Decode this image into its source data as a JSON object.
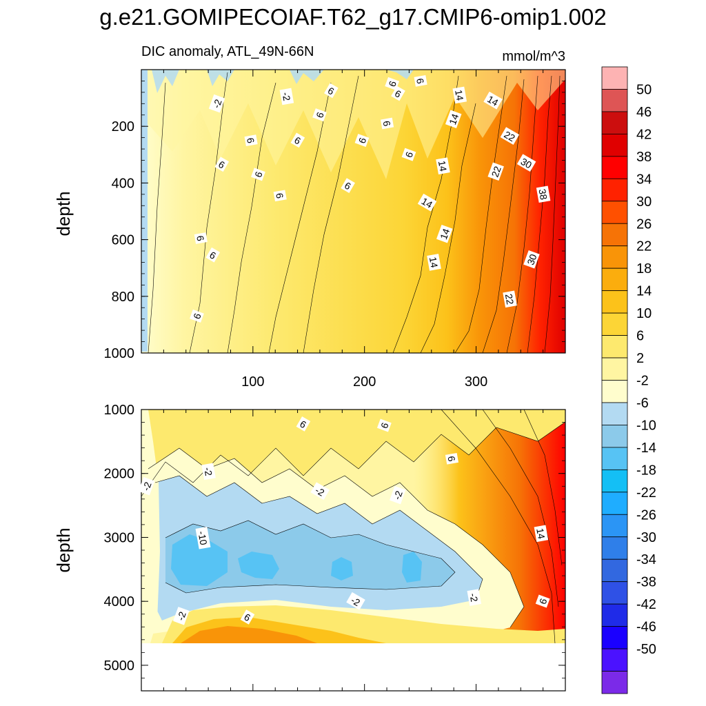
{
  "chart_data": {
    "title": "g.e21.GOMIPECOIAF.T62_g17.CMIP6-omip1.002",
    "variable": "DIC anomaly, ATL_49N-66N",
    "units": "mmol/m^3",
    "type": "heatmap",
    "x_range": [
      0,
      380
    ],
    "x_tick_labels": [
      "100",
      "200",
      "300"
    ],
    "panels": [
      {
        "name": "upper",
        "ylabel": "depth",
        "ylim": [
          0,
          1000
        ],
        "y_inverted": true,
        "y_tick_labels": [
          "200",
          "400",
          "600",
          "800",
          "1000"
        ],
        "contour_labels": [
          {
            "text": "-2",
            "x": 68,
            "y": 120
          },
          {
            "text": "-2",
            "x": 130,
            "y": 95
          },
          {
            "text": "6",
            "x": 170,
            "y": 75
          },
          {
            "text": "6",
            "x": 225,
            "y": 50
          },
          {
            "text": "6",
            "x": 250,
            "y": 40
          },
          {
            "text": "6",
            "x": 230,
            "y": 85
          },
          {
            "text": "6",
            "x": 160,
            "y": 160
          },
          {
            "text": "6",
            "x": 98,
            "y": 250
          },
          {
            "text": "6",
            "x": 140,
            "y": 250
          },
          {
            "text": "6",
            "x": 198,
            "y": 250
          },
          {
            "text": "6",
            "x": 220,
            "y": 190
          },
          {
            "text": "6",
            "x": 72,
            "y": 335
          },
          {
            "text": "6",
            "x": 105,
            "y": 370
          },
          {
            "text": "6",
            "x": 124,
            "y": 445
          },
          {
            "text": "6",
            "x": 185,
            "y": 410
          },
          {
            "text": "6",
            "x": 240,
            "y": 300
          },
          {
            "text": "6",
            "x": 53,
            "y": 595
          },
          {
            "text": "6",
            "x": 64,
            "y": 655
          },
          {
            "text": "6",
            "x": 50,
            "y": 870
          },
          {
            "text": "14",
            "x": 285,
            "y": 90
          },
          {
            "text": "14",
            "x": 315,
            "y": 110
          },
          {
            "text": "14",
            "x": 280,
            "y": 175
          },
          {
            "text": "14",
            "x": 270,
            "y": 340
          },
          {
            "text": "14",
            "x": 256,
            "y": 470
          },
          {
            "text": "14",
            "x": 272,
            "y": 580
          },
          {
            "text": "14",
            "x": 262,
            "y": 680
          },
          {
            "text": "22",
            "x": 330,
            "y": 235
          },
          {
            "text": "22",
            "x": 318,
            "y": 360
          },
          {
            "text": "22",
            "x": 330,
            "y": 810
          },
          {
            "text": "30",
            "x": 345,
            "y": 330
          },
          {
            "text": "30",
            "x": 350,
            "y": 670
          },
          {
            "text": "38",
            "x": 360,
            "y": 440
          }
        ]
      },
      {
        "name": "lower",
        "ylabel": "depth",
        "ylim": [
          1000,
          5400
        ],
        "y_inverted": true,
        "y_tick_labels": [
          "1000",
          "2000",
          "3000",
          "4000",
          "5000"
        ],
        "land_below_depth": 4650,
        "contour_labels": [
          {
            "text": "-2",
            "x": 5,
            "y": 2200
          },
          {
            "text": "-2",
            "x": 60,
            "y": 1970
          },
          {
            "text": "-2",
            "x": 160,
            "y": 2280
          },
          {
            "text": "-2",
            "x": 230,
            "y": 2340
          },
          {
            "text": "-2",
            "x": 298,
            "y": 3940
          },
          {
            "text": "-2",
            "x": 192,
            "y": 4000
          },
          {
            "text": "-2",
            "x": 36,
            "y": 4230
          },
          {
            "text": "-10",
            "x": 55,
            "y": 3010
          },
          {
            "text": "6",
            "x": 145,
            "y": 1230
          },
          {
            "text": "6",
            "x": 218,
            "y": 1250
          },
          {
            "text": "6",
            "x": 278,
            "y": 1770
          },
          {
            "text": "6",
            "x": 95,
            "y": 4250
          },
          {
            "text": "6",
            "x": 360,
            "y": 4000
          },
          {
            "text": "14",
            "x": 358,
            "y": 2940
          }
        ]
      }
    ],
    "colorbar": {
      "labels": [
        "50",
        "46",
        "42",
        "38",
        "34",
        "30",
        "26",
        "22",
        "18",
        "14",
        "10",
        "6",
        "2",
        "-2",
        "-6",
        "-10",
        "-14",
        "-18",
        "-22",
        "-26",
        "-30",
        "-34",
        "-38",
        "-42",
        "-46",
        "-50"
      ],
      "colors": [
        "#7b2ae8",
        "#4b12ff",
        "#1a00ff",
        "#1f2be8",
        "#2f51e6",
        "#3268e0",
        "#2f7fe9",
        "#2b95f5",
        "#1fadff",
        "#14bff5",
        "#57c3f4",
        "#8ccaea",
        "#b3daf2",
        "#fffdcd",
        "#fff5a2",
        "#fde96e",
        "#fcd536",
        "#fcc21a",
        "#fbad0d",
        "#f99408",
        "#f67306",
        "#ff5000",
        "#ff2200",
        "#ff0000",
        "#e00000",
        "#cc0e0e",
        "#de5555",
        "#fdb3b3"
      ]
    }
  }
}
